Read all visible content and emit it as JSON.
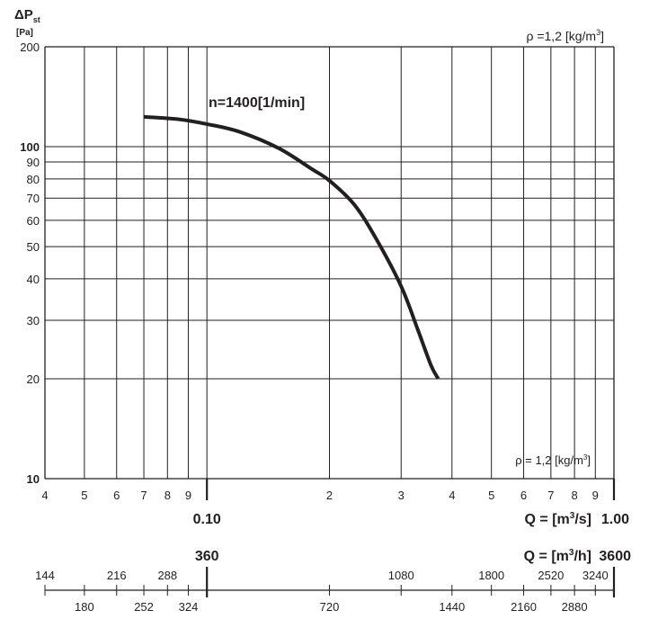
{
  "chart_data": {
    "type": "line",
    "y_axis": {
      "symbol": "ΔP",
      "subscript": "st",
      "unit": "[Pa]",
      "scale": "log",
      "ylim": [
        10,
        200
      ],
      "ticks": [
        10,
        20,
        30,
        40,
        50,
        60,
        70,
        80,
        90,
        100,
        200
      ],
      "tick_labels": [
        "10",
        "20",
        "30",
        "40",
        "50",
        "60",
        "70",
        "80",
        "90",
        "100",
        "200"
      ],
      "bold_ticks": [
        10,
        100
      ]
    },
    "x_axis_flow_m3s": {
      "scale": "log",
      "xlim": [
        0.04,
        1.0
      ],
      "grid": [
        0.05,
        0.06,
        0.07,
        0.08,
        0.09,
        0.1,
        0.2,
        0.3,
        0.4,
        0.5,
        0.6,
        0.7,
        0.8,
        0.9,
        1.0
      ],
      "ticks": [
        {
          "v": 0.04,
          "label": "4"
        },
        {
          "v": 0.05,
          "label": "5"
        },
        {
          "v": 0.06,
          "label": "6"
        },
        {
          "v": 0.07,
          "label": "7"
        },
        {
          "v": 0.08,
          "label": "8"
        },
        {
          "v": 0.09,
          "label": "9"
        },
        {
          "v": 0.2,
          "label": "2"
        },
        {
          "v": 0.3,
          "label": "3"
        },
        {
          "v": 0.4,
          "label": "4"
        },
        {
          "v": 0.5,
          "label": "5"
        },
        {
          "v": 0.6,
          "label": "6"
        },
        {
          "v": 0.7,
          "label": "7"
        },
        {
          "v": 0.8,
          "label": "8"
        },
        {
          "v": 0.9,
          "label": "9"
        }
      ],
      "decade_labels": [
        {
          "v": 0.1,
          "label": "0.10"
        },
        {
          "v": 1.0,
          "label": "1.00"
        }
      ],
      "unit_prefix": "Q = [m",
      "unit_sup": "3",
      "unit_suffix": "/s]"
    },
    "x_axis_flow_m3h": {
      "decade_labels": [
        {
          "v": 360,
          "label": "360"
        },
        {
          "v": 3600,
          "label": "3600"
        }
      ],
      "unit_prefix": "Q = [m",
      "unit_sup": "3",
      "unit_suffix": "/h]",
      "upper_labels": [
        {
          "v": 144,
          "label": "144"
        },
        {
          "v": 216,
          "label": "216"
        },
        {
          "v": 288,
          "label": "288"
        },
        {
          "v": 1080,
          "label": "1080"
        },
        {
          "v": 1800,
          "label": "1800"
        },
        {
          "v": 2520,
          "label": "2520"
        },
        {
          "v": 3240,
          "label": "3240"
        }
      ],
      "lower_labels": [
        {
          "v": 180,
          "label": "180"
        },
        {
          "v": 252,
          "label": "252"
        },
        {
          "v": 324,
          "label": "324"
        },
        {
          "v": 720,
          "label": "720"
        },
        {
          "v": 1440,
          "label": "1440"
        },
        {
          "v": 2160,
          "label": "2160"
        },
        {
          "v": 2880,
          "label": "2880"
        }
      ],
      "ticks": [
        144,
        180,
        216,
        252,
        288,
        324,
        360,
        720,
        1080,
        1440,
        1800,
        2160,
        2520,
        2880,
        3240,
        3600
      ]
    },
    "density_note": {
      "prefix": "ρ =1,2 [kg/m",
      "sup": "3",
      "suffix": "]"
    },
    "density_note_inner": {
      "prefix": "ρ = 1,2 [kg/m",
      "sup": "3",
      "suffix": "]"
    },
    "series": [
      {
        "name": "n=1400[1/min]",
        "x": [
          0.07,
          0.085,
          0.1,
          0.12,
          0.15,
          0.18,
          0.2,
          0.23,
          0.26,
          0.3,
          0.33,
          0.355,
          0.37
        ],
        "y": [
          123,
          121,
          117,
          111,
          99,
          86,
          79,
          67,
          53,
          38,
          28,
          22,
          20
        ]
      }
    ]
  }
}
